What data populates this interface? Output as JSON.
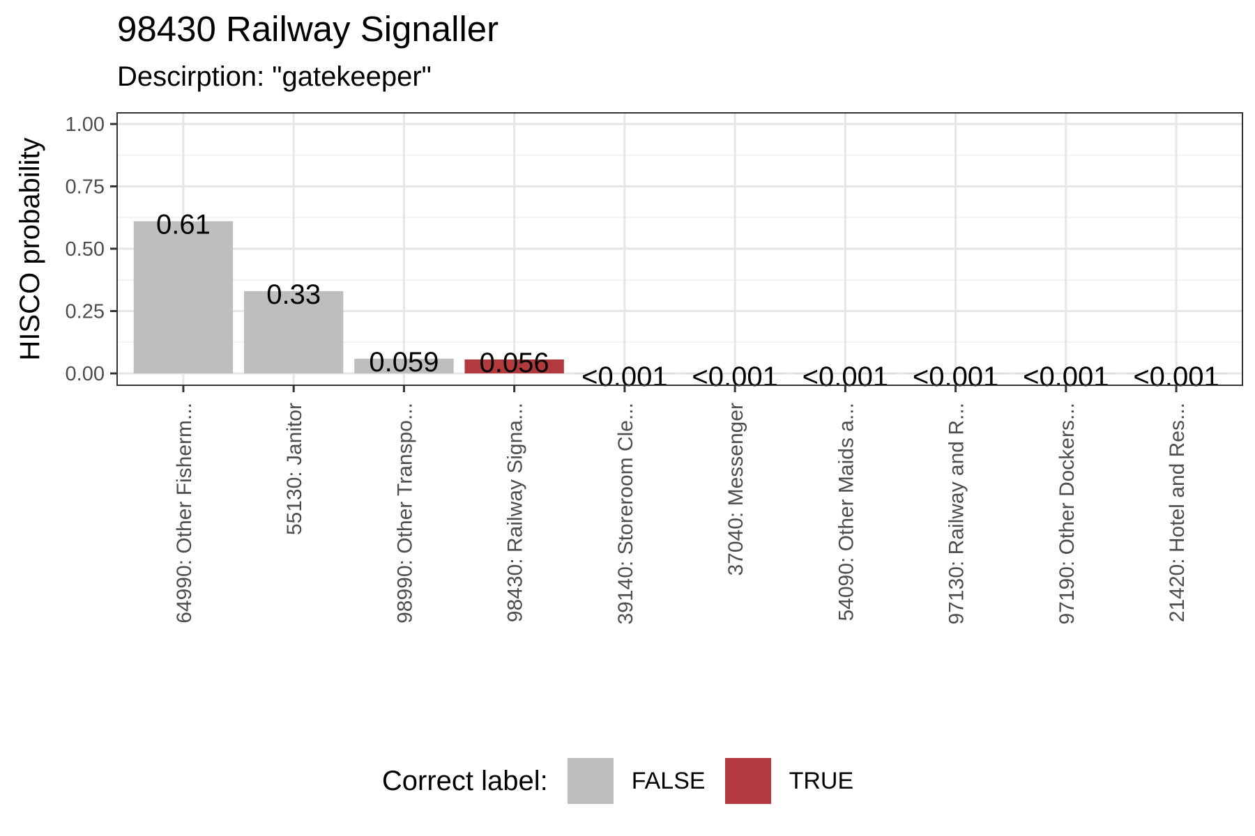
{
  "chart_data": {
    "type": "bar",
    "title": "98430 Railway Signaller",
    "subtitle": "Descirption: \"gatekeeper\"",
    "ylabel": "HISCO probability",
    "xlabel": "",
    "ylim": [
      0,
      1
    ],
    "yticks": [
      "0.00",
      "0.25",
      "0.50",
      "0.75",
      "1.00"
    ],
    "grid": true,
    "legend_position": "bottom",
    "categories": [
      "64990: Other Fisherm...",
      "55130: Janitor",
      "98990: Other Transpo...",
      "98430: Railway Signa...",
      "39140: Storeroom Cle...",
      "37040: Messenger",
      "54090: Other Maids a...",
      "97130: Railway and R...",
      "97190: Other Dockers...",
      "21420: Hotel and Res..."
    ],
    "values": [
      0.61,
      0.33,
      0.059,
      0.056,
      0.0005,
      0.0005,
      0.0005,
      0.0005,
      0.0005,
      0.0005
    ],
    "value_labels": [
      "0.61",
      "0.33",
      "0.059",
      "0.056",
      "<0.001",
      "<0.001",
      "<0.001",
      "<0.001",
      "<0.001",
      "<0.001"
    ],
    "correct": [
      false,
      false,
      false,
      true,
      false,
      false,
      false,
      false,
      false,
      false
    ],
    "legend": {
      "title": "Correct label:",
      "items": [
        {
          "label": "FALSE",
          "color": "#bebebe"
        },
        {
          "label": "TRUE",
          "color": "#b23a3e"
        }
      ]
    }
  }
}
